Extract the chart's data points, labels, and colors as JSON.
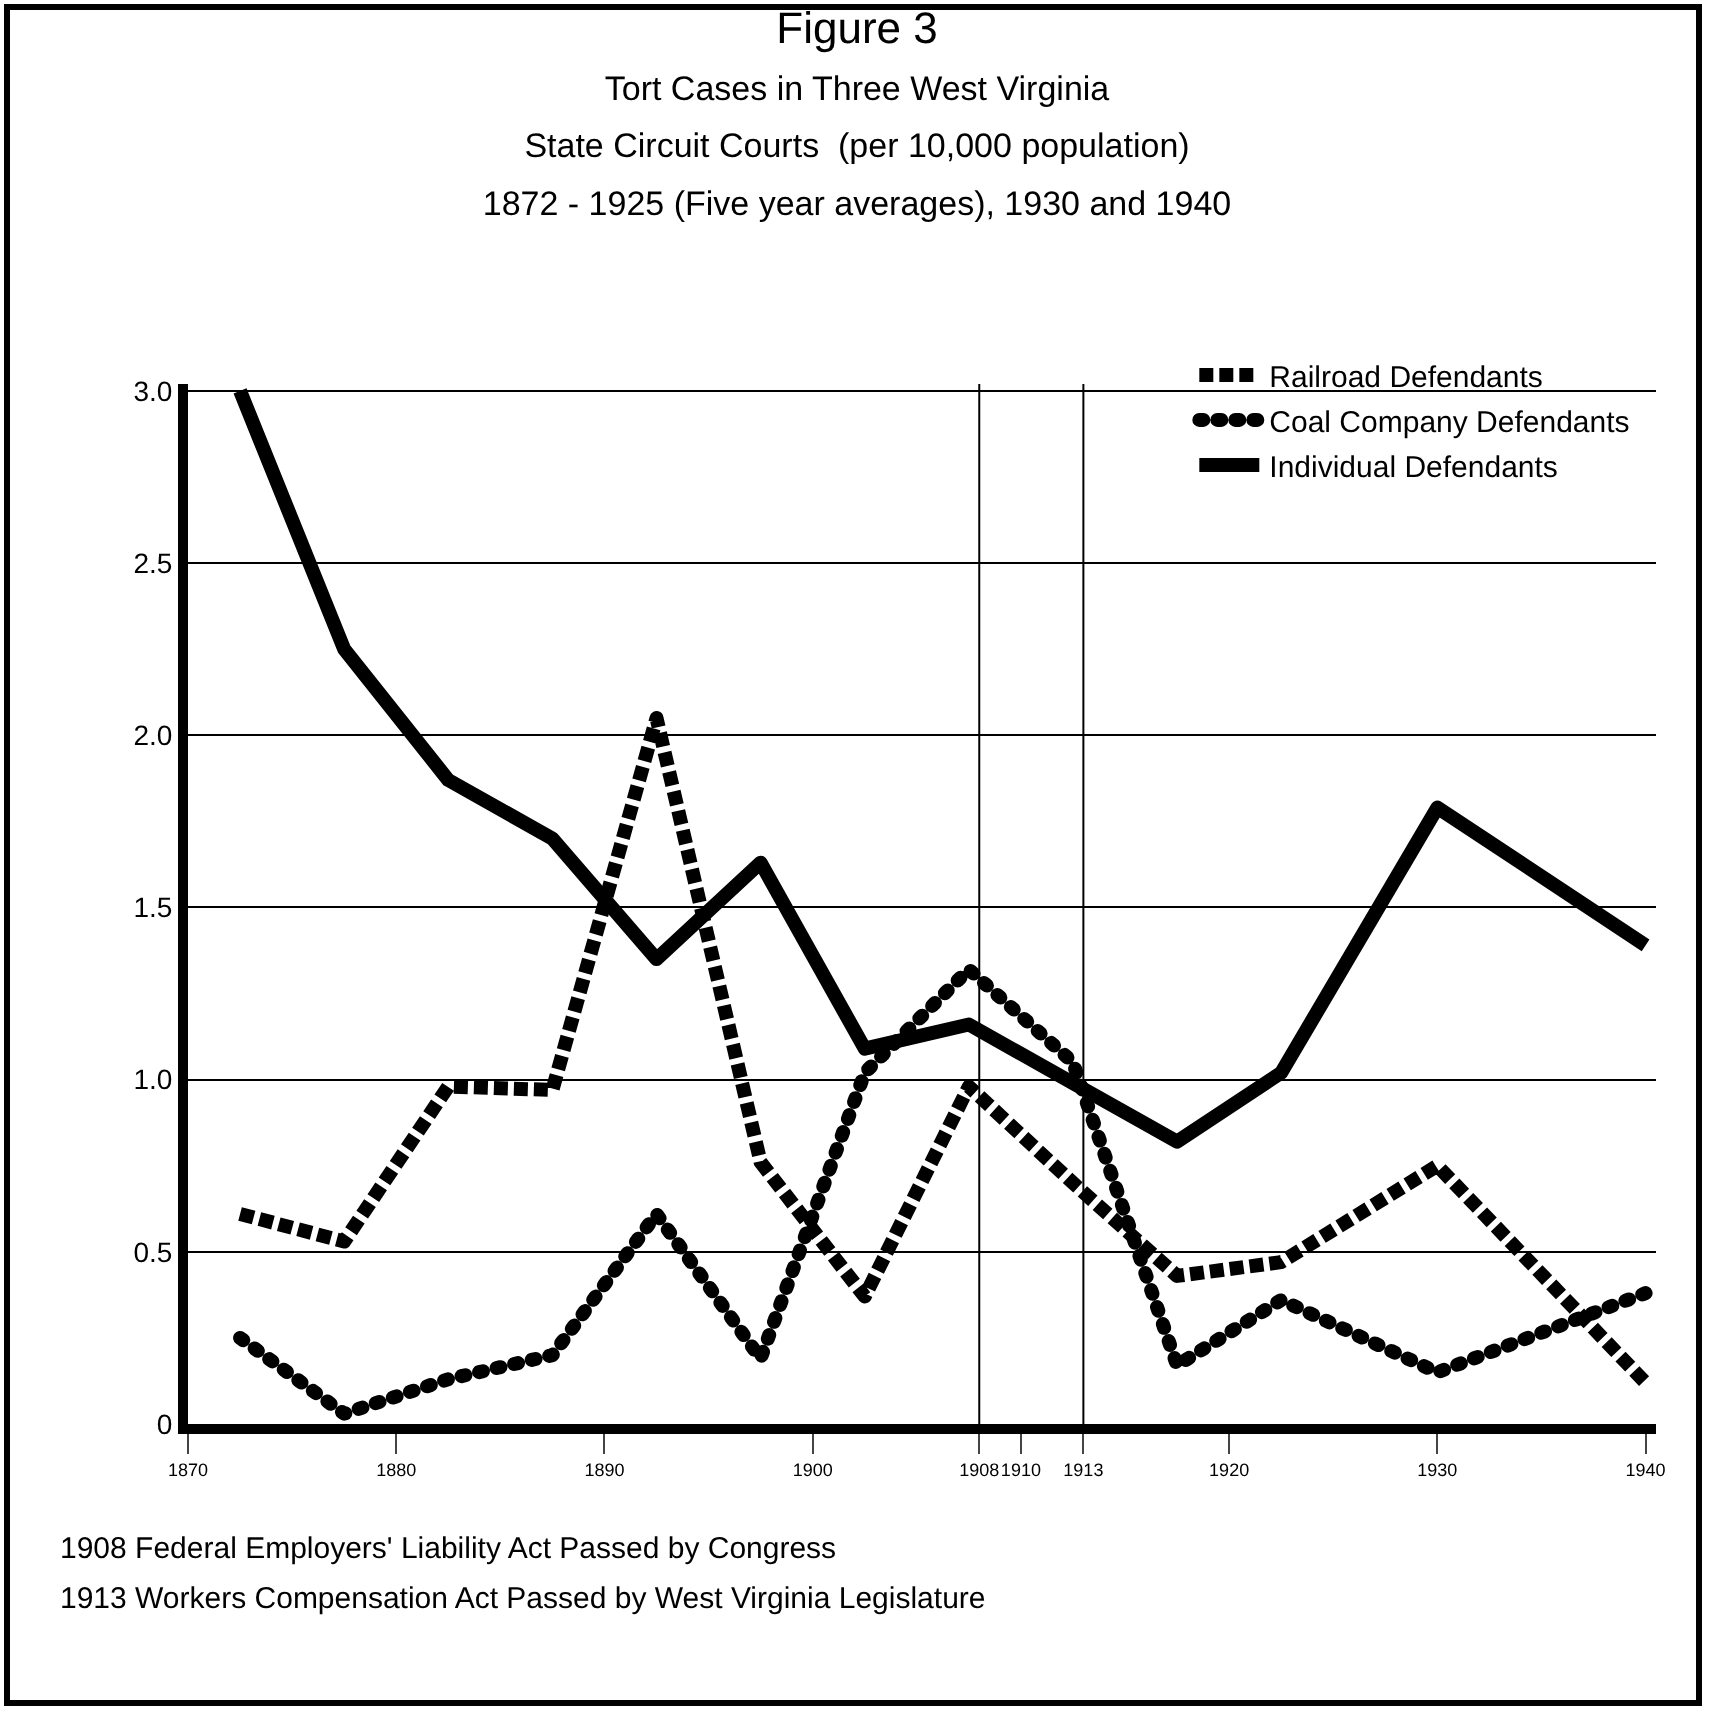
{
  "chart_data": {
    "type": "line",
    "title": "Figure 3",
    "subtitle": "Tort Cases in Three West Virginia\nState Circuit Courts  (per 10,000 population)\n1872 - 1925 (Five year averages), 1930 and 1940",
    "x": [
      1872.5,
      1877.5,
      1882.5,
      1887.5,
      1892.5,
      1897.5,
      1902.5,
      1907.5,
      1912.5,
      1917.5,
      1922.5,
      1930,
      1940
    ],
    "series": [
      {
        "name": "Railroad Defendants",
        "color": "#000000",
        "line_style": "dashed",
        "values": [
          0.61,
          0.53,
          0.98,
          0.97,
          2.05,
          0.76,
          0.37,
          0.98,
          0.7,
          0.43,
          0.47,
          0.75,
          0.12
        ]
      },
      {
        "name": "Coal Company Defendants",
        "color": "#000000",
        "line_style": "dotted",
        "values": [
          0.25,
          0.03,
          0.13,
          0.2,
          0.61,
          0.19,
          1.02,
          1.32,
          1.05,
          0.17,
          0.36,
          0.15,
          0.38
        ]
      },
      {
        "name": "Individual Defendants",
        "color": "#000000",
        "line_style": "solid",
        "values": [
          3.0,
          2.25,
          1.87,
          1.7,
          1.35,
          1.63,
          1.09,
          1.16,
          0.99,
          0.82,
          1.02,
          1.79,
          1.39
        ]
      }
    ],
    "xlim": [
      1870,
      1940.5
    ],
    "ylim": [
      0,
      3.02
    ],
    "xticks": [
      1870,
      1880,
      1890,
      1900,
      1908,
      1910,
      1913,
      1920,
      1930,
      1940
    ],
    "yticks": [
      0,
      {
        "value": 0.5,
        "label": "0.5"
      },
      {
        "value": 1,
        "label": "1.0"
      },
      {
        "value": 1.5,
        "label": "1.5"
      },
      {
        "value": 2,
        "label": "2.0"
      },
      {
        "value": 2.5,
        "label": "2.5"
      },
      {
        "value": 3,
        "label": "3.0"
      }
    ],
    "grid": "y",
    "legend": "top right",
    "ref_lines": [
      {
        "axis": "x",
        "value": 1908,
        "color": "#000000"
      },
      {
        "axis": "x",
        "value": 1913,
        "color": "#000000"
      }
    ],
    "annotations": [
      "1908 Federal Employers' Liability Act Passed by Congress",
      "1913 Workers Compensation Act Passed by West Virginia Legislature"
    ]
  }
}
